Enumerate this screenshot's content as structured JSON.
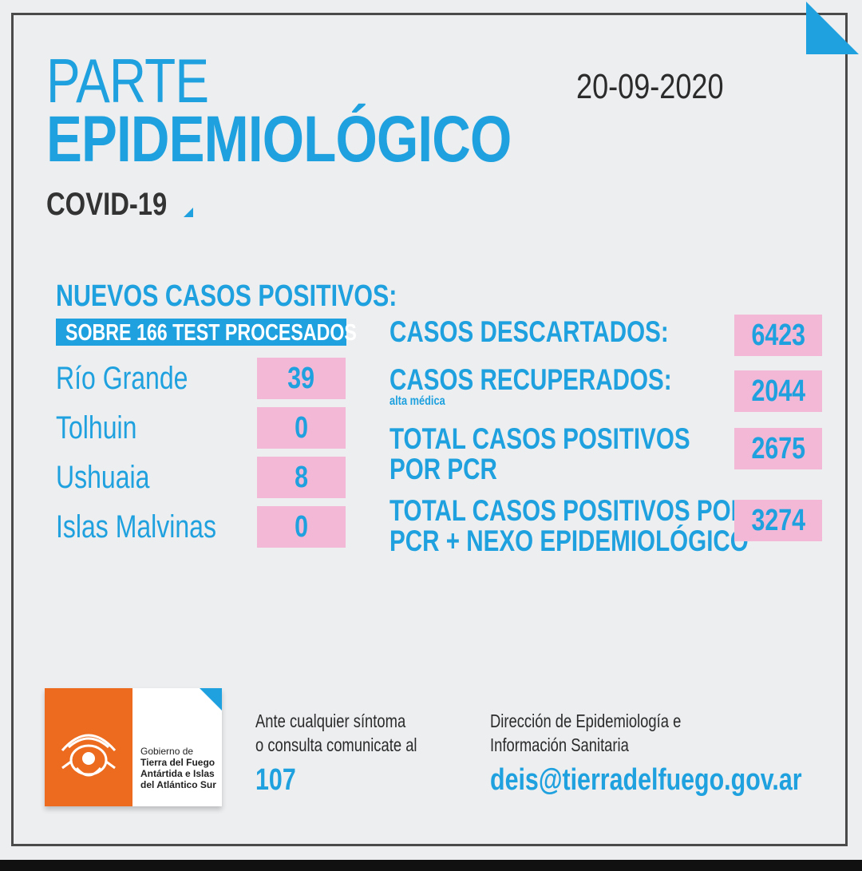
{
  "header": {
    "title_line1": "PARTE",
    "title_line2": "EPIDEMIOLÓGICO",
    "date": "20-09-2020",
    "subtitle": "COVID-19"
  },
  "new_cases": {
    "heading": "NUEVOS CASOS POSITIVOS:",
    "tests_banner": "SOBRE 166 TEST PROCESADOS",
    "rows": [
      {
        "city": "Río Grande",
        "value": "39"
      },
      {
        "city": "Tolhuin",
        "value": "0"
      },
      {
        "city": "Ushuaia",
        "value": "8"
      },
      {
        "city": "Islas Malvinas",
        "value": "0"
      }
    ]
  },
  "totals": {
    "discarded_label": "CASOS DESCARTADOS:",
    "discarded_value": "6423",
    "recovered_label": "CASOS RECUPERADOS:",
    "recovered_sub": "alta médica",
    "recovered_value": "2044",
    "pcr_label_line1": "TOTAL CASOS POSITIVOS",
    "pcr_label_line2": "POR PCR",
    "pcr_value": "2675",
    "nexo_label_line1": "TOTAL CASOS POSITIVOS POR",
    "nexo_label_line2": "PCR + NEXO EPIDEMIOLÓGICO",
    "nexo_value": "3274"
  },
  "footer": {
    "gov_line1": "Gobierno de",
    "gov_line2": "Tierra del Fuego",
    "gov_line3": "Antártida e Islas",
    "gov_line4": "del Atlántico Sur",
    "contact_line1": "Ante cualquier síntoma",
    "contact_line2": "o consulta comunicate al",
    "phone": "107",
    "dept_line1": "Dirección de Epidemiología e",
    "dept_line2": "Información Sanitaria",
    "email": "deis@tierradelfuego.gov.ar"
  },
  "colors": {
    "accent": "#1ea1de",
    "cell_pink": "#f2b8d6",
    "logo_orange": "#ec6b1f",
    "background": "#eceef0"
  }
}
